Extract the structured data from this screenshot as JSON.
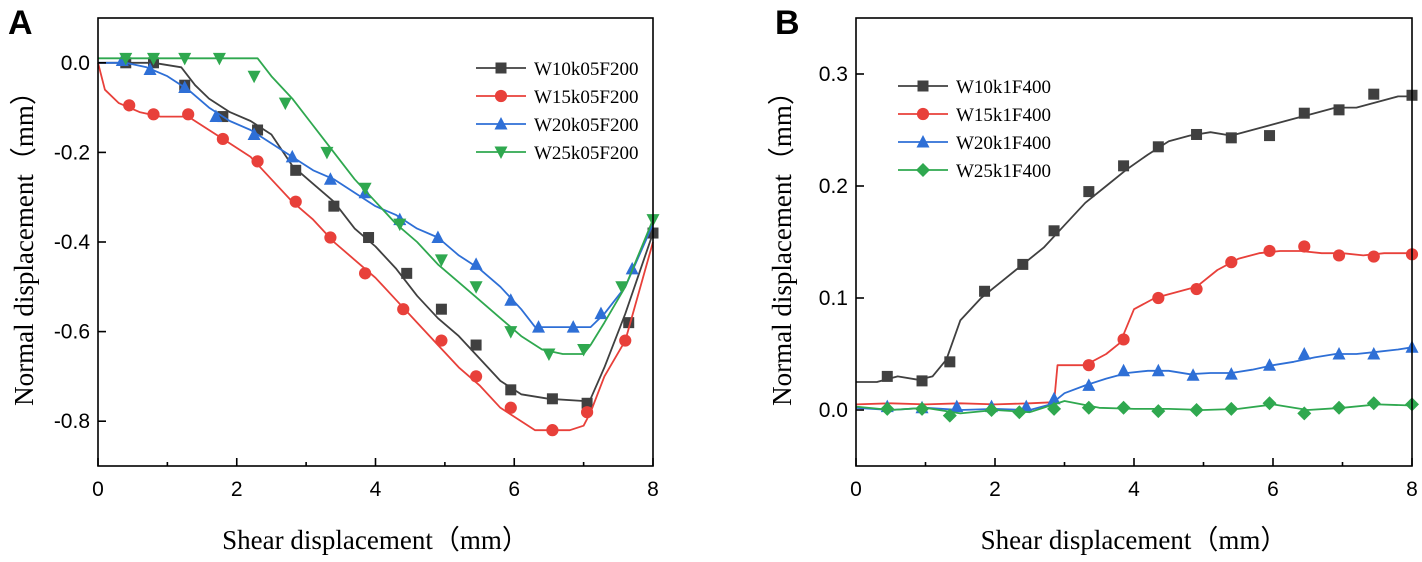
{
  "figure": {
    "panels": [
      "A",
      "B"
    ]
  },
  "chart_data": [
    {
      "panel_label": "A",
      "type": "line",
      "title": "",
      "xlabel": "Shear displacement（mm）",
      "ylabel": "Normal displacement（mm）",
      "xlim": [
        0,
        8
      ],
      "ylim": [
        -0.9,
        0.1
      ],
      "xticks": [
        0,
        2,
        4,
        6,
        8
      ],
      "yticks": [
        0.0,
        -0.2,
        -0.4,
        -0.6,
        -0.8
      ],
      "xtick_labels": [
        "0",
        "2",
        "4",
        "6",
        "8"
      ],
      "ytick_labels": [
        "0.0",
        "-0.2",
        "-0.4",
        "-0.6",
        "-0.8"
      ],
      "legend_position": "top-right",
      "series": [
        {
          "name": "W10k05F200",
          "color": "#404040",
          "marker": "square",
          "x": [
            0,
            0.4,
            0.8,
            1.2,
            1.4,
            1.6,
            1.9,
            2.2,
            2.5,
            2.8,
            3.1,
            3.4,
            3.7,
            4.0,
            4.3,
            4.6,
            4.9,
            5.2,
            5.5,
            5.8,
            6.1,
            6.5,
            7.0,
            7.1,
            7.3,
            7.6,
            8.0
          ],
          "y": [
            0.0,
            0.0,
            0.0,
            -0.01,
            -0.05,
            -0.08,
            -0.11,
            -0.13,
            -0.16,
            -0.23,
            -0.27,
            -0.31,
            -0.37,
            -0.41,
            -0.46,
            -0.52,
            -0.57,
            -0.61,
            -0.66,
            -0.71,
            -0.74,
            -0.75,
            -0.755,
            -0.75,
            -0.68,
            -0.56,
            -0.38
          ],
          "marker_x": [
            0.4,
            0.8,
            1.25,
            1.8,
            2.3,
            2.85,
            3.4,
            3.9,
            4.45,
            4.95,
            5.45,
            5.95,
            6.55,
            7.05,
            7.65,
            8.0
          ],
          "marker_y": [
            0.0,
            0.0,
            -0.05,
            -0.12,
            -0.15,
            -0.24,
            -0.32,
            -0.39,
            -0.47,
            -0.55,
            -0.63,
            -0.73,
            -0.75,
            -0.76,
            -0.58,
            -0.38
          ]
        },
        {
          "name": "W15k05F200",
          "color": "#e8403a",
          "marker": "circle",
          "x": [
            0,
            0.1,
            0.3,
            0.6,
            0.9,
            1.3,
            1.6,
            1.9,
            2.2,
            2.5,
            2.8,
            3.1,
            3.4,
            3.7,
            4.0,
            4.3,
            4.6,
            4.9,
            5.2,
            5.5,
            5.8,
            6.1,
            6.3,
            6.8,
            7.0,
            7.1,
            7.3,
            7.6,
            8.0
          ],
          "y": [
            0.0,
            -0.06,
            -0.09,
            -0.11,
            -0.12,
            -0.12,
            -0.15,
            -0.18,
            -0.21,
            -0.26,
            -0.31,
            -0.35,
            -0.4,
            -0.44,
            -0.48,
            -0.53,
            -0.58,
            -0.63,
            -0.68,
            -0.72,
            -0.77,
            -0.8,
            -0.82,
            -0.82,
            -0.81,
            -0.78,
            -0.7,
            -0.62,
            -0.4
          ],
          "marker_x": [
            0.45,
            0.8,
            1.3,
            1.8,
            2.3,
            2.85,
            3.35,
            3.85,
            4.4,
            4.95,
            5.45,
            5.95,
            6.55,
            7.05,
            7.6
          ],
          "marker_y": [
            -0.095,
            -0.115,
            -0.115,
            -0.17,
            -0.22,
            -0.31,
            -0.39,
            -0.47,
            -0.55,
            -0.62,
            -0.7,
            -0.77,
            -0.82,
            -0.78,
            -0.62
          ]
        },
        {
          "name": "W20k05F200",
          "color": "#2e6fd6",
          "marker": "triangle-up",
          "x": [
            0,
            0.4,
            0.7,
            1.0,
            1.3,
            1.6,
            1.9,
            2.2,
            2.5,
            2.8,
            3.1,
            3.4,
            3.7,
            4.0,
            4.3,
            4.6,
            4.9,
            5.2,
            5.5,
            5.8,
            6.1,
            6.3,
            6.8,
            7.1,
            7.3,
            7.6,
            8.0
          ],
          "y": [
            0.0,
            0.0,
            -0.01,
            -0.03,
            -0.06,
            -0.1,
            -0.13,
            -0.15,
            -0.18,
            -0.21,
            -0.24,
            -0.26,
            -0.29,
            -0.32,
            -0.34,
            -0.37,
            -0.39,
            -0.43,
            -0.46,
            -0.5,
            -0.55,
            -0.59,
            -0.59,
            -0.59,
            -0.56,
            -0.5,
            -0.36
          ],
          "marker_x": [
            0.35,
            0.75,
            1.25,
            1.7,
            2.25,
            2.8,
            3.35,
            3.85,
            4.35,
            4.9,
            5.45,
            5.95,
            6.35,
            6.85,
            7.25,
            7.7
          ],
          "marker_y": [
            0.005,
            -0.015,
            -0.055,
            -0.12,
            -0.16,
            -0.21,
            -0.26,
            -0.29,
            -0.35,
            -0.39,
            -0.45,
            -0.53,
            -0.59,
            -0.59,
            -0.56,
            -0.46
          ]
        },
        {
          "name": "W25k05F200",
          "color": "#2fa84f",
          "marker": "triangle-down",
          "x": [
            0,
            0.5,
            1.0,
            1.5,
            2.0,
            2.3,
            2.5,
            2.8,
            3.1,
            3.4,
            3.7,
            4.0,
            4.3,
            4.6,
            4.9,
            5.2,
            5.5,
            5.8,
            6.1,
            6.4,
            6.7,
            7.0,
            7.1,
            7.3,
            7.6,
            8.0
          ],
          "y": [
            0.01,
            0.01,
            0.01,
            0.01,
            0.01,
            0.01,
            -0.03,
            -0.08,
            -0.14,
            -0.2,
            -0.26,
            -0.31,
            -0.36,
            -0.4,
            -0.45,
            -0.49,
            -0.53,
            -0.57,
            -0.61,
            -0.64,
            -0.65,
            -0.65,
            -0.63,
            -0.58,
            -0.5,
            -0.35
          ],
          "marker_x": [
            0.4,
            0.8,
            1.25,
            1.75,
            2.25,
            2.7,
            3.3,
            3.85,
            4.35,
            4.95,
            5.45,
            5.95,
            6.5,
            7.0,
            7.55,
            8.0
          ],
          "marker_y": [
            0.01,
            0.01,
            0.01,
            0.01,
            -0.03,
            -0.09,
            -0.2,
            -0.28,
            -0.36,
            -0.44,
            -0.5,
            -0.6,
            -0.65,
            -0.64,
            -0.5,
            -0.35
          ]
        }
      ]
    },
    {
      "panel_label": "B",
      "type": "line",
      "title": "",
      "xlabel": "Shear displacement（mm）",
      "ylabel": "Normal displacement（mm）",
      "xlim": [
        0,
        8
      ],
      "ylim": [
        -0.05,
        0.35
      ],
      "xticks": [
        0,
        2,
        4,
        6,
        8
      ],
      "yticks": [
        0.0,
        0.1,
        0.2,
        0.3
      ],
      "xtick_labels": [
        "0",
        "2",
        "4",
        "6",
        "8"
      ],
      "ytick_labels": [
        "0.0",
        "0.1",
        "0.2",
        "0.3"
      ],
      "legend_position": "top-left",
      "series": [
        {
          "name": "W10k1F400",
          "color": "#404040",
          "marker": "square",
          "x": [
            0,
            0.3,
            0.6,
            0.9,
            1.1,
            1.3,
            1.5,
            1.8,
            2.1,
            2.4,
            2.7,
            3.0,
            3.3,
            3.6,
            3.9,
            4.2,
            4.5,
            4.8,
            5.1,
            5.4,
            5.7,
            6.0,
            6.3,
            6.6,
            6.9,
            7.2,
            7.5,
            7.8,
            8.0
          ],
          "y": [
            0.025,
            0.025,
            0.03,
            0.027,
            0.03,
            0.045,
            0.08,
            0.1,
            0.115,
            0.13,
            0.145,
            0.165,
            0.185,
            0.2,
            0.215,
            0.228,
            0.24,
            0.245,
            0.248,
            0.245,
            0.25,
            0.255,
            0.26,
            0.265,
            0.27,
            0.27,
            0.275,
            0.28,
            0.28
          ],
          "marker_x": [
            0.45,
            0.95,
            1.35,
            1.85,
            2.4,
            2.85,
            3.35,
            3.85,
            4.35,
            4.9,
            5.4,
            5.95,
            6.45,
            6.95,
            7.45,
            8.0
          ],
          "marker_y": [
            0.03,
            0.026,
            0.043,
            0.106,
            0.13,
            0.16,
            0.195,
            0.218,
            0.235,
            0.246,
            0.243,
            0.245,
            0.265,
            0.268,
            0.282,
            0.281
          ]
        },
        {
          "name": "W15k1F400",
          "color": "#e8403a",
          "marker": "circle",
          "x": [
            0,
            0.5,
            1.0,
            1.5,
            2.0,
            2.5,
            2.85,
            2.9,
            3.3,
            3.6,
            3.8,
            4.0,
            4.3,
            4.6,
            4.9,
            5.2,
            5.5,
            5.8,
            6.1,
            6.4,
            6.7,
            7.0,
            7.3,
            7.6,
            8.0
          ],
          "y": [
            0.005,
            0.006,
            0.005,
            0.006,
            0.005,
            0.006,
            0.007,
            0.04,
            0.04,
            0.05,
            0.06,
            0.09,
            0.1,
            0.105,
            0.11,
            0.125,
            0.135,
            0.14,
            0.142,
            0.142,
            0.14,
            0.14,
            0.138,
            0.14,
            0.14
          ],
          "marker_x": [
            3.35,
            3.85,
            4.35,
            4.9,
            5.4,
            5.95,
            6.45,
            6.95,
            7.45,
            8.0
          ],
          "marker_y": [
            0.04,
            0.063,
            0.1,
            0.108,
            0.132,
            0.142,
            0.146,
            0.138,
            0.137,
            0.139
          ]
        },
        {
          "name": "W20k1F400",
          "color": "#2e6fd6",
          "marker": "triangle-up",
          "x": [
            0,
            0.5,
            1.0,
            1.5,
            2.0,
            2.5,
            2.8,
            3.0,
            3.3,
            3.6,
            3.9,
            4.2,
            4.5,
            4.8,
            5.1,
            5.4,
            5.7,
            6.0,
            6.3,
            6.6,
            6.9,
            7.2,
            7.5,
            7.8,
            8.0
          ],
          "y": [
            0.002,
            0.0,
            0.002,
            0.0,
            0.001,
            0.0,
            0.005,
            0.015,
            0.022,
            0.028,
            0.033,
            0.035,
            0.035,
            0.032,
            0.033,
            0.033,
            0.036,
            0.04,
            0.043,
            0.047,
            0.05,
            0.05,
            0.052,
            0.054,
            0.056
          ],
          "marker_x": [
            0.45,
            0.95,
            1.45,
            1.95,
            2.45,
            2.85,
            3.35,
            3.85,
            4.35,
            4.85,
            5.4,
            5.95,
            6.45,
            6.95,
            7.45,
            8.0
          ],
          "marker_y": [
            0.003,
            0.002,
            0.003,
            0.003,
            0.003,
            0.01,
            0.022,
            0.035,
            0.035,
            0.031,
            0.032,
            0.04,
            0.05,
            0.05,
            0.05,
            0.056
          ]
        },
        {
          "name": "W25k1F400",
          "color": "#2fa84f",
          "marker": "diamond",
          "x": [
            0,
            0.5,
            1.0,
            1.5,
            2.0,
            2.5,
            3.0,
            3.5,
            4.0,
            4.5,
            5.0,
            5.5,
            6.0,
            6.5,
            7.0,
            7.5,
            8.0
          ],
          "y": [
            0.003,
            0.0,
            0.002,
            -0.003,
            0.0,
            -0.002,
            0.008,
            0.002,
            0.001,
            0.001,
            0.0,
            0.001,
            0.005,
            0.0,
            0.002,
            0.005,
            0.004
          ],
          "marker_x": [
            0.45,
            0.95,
            1.35,
            1.95,
            2.35,
            2.85,
            3.35,
            3.85,
            4.35,
            4.9,
            5.4,
            5.95,
            6.45,
            6.95,
            7.45,
            8.0
          ],
          "marker_y": [
            0.001,
            0.001,
            -0.005,
            0.0,
            -0.002,
            0.001,
            0.002,
            0.002,
            -0.001,
            0.0,
            0.001,
            0.006,
            -0.003,
            0.002,
            0.006,
            0.005
          ]
        }
      ]
    }
  ]
}
